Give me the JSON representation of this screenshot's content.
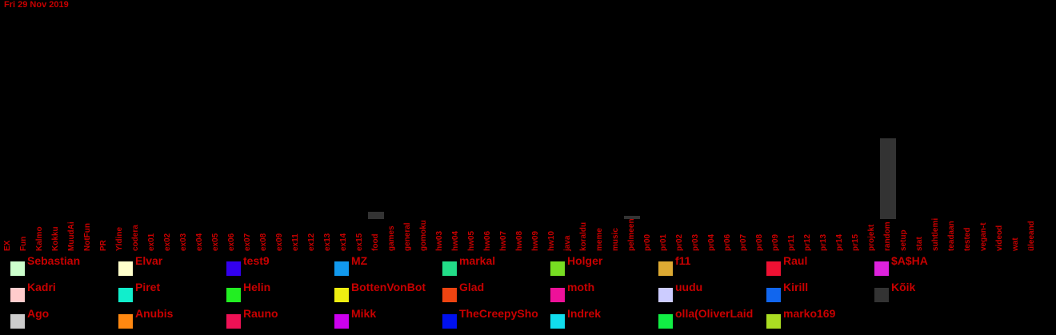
{
  "date": "Fri 29 Nov 2019",
  "chart_data": {
    "type": "bar",
    "categories": [
      "EX",
      "Fun",
      "Kalmo",
      "Kokku",
      "MuudAi",
      "NotFun",
      "PR",
      "Yldine",
      "codera",
      "ex01",
      "ex02",
      "ex03",
      "ex04",
      "ex05",
      "ex06",
      "ex07",
      "ex08",
      "ex09",
      "ex11",
      "ex12",
      "ex13",
      "ex14",
      "ex15",
      "food",
      "games",
      "general",
      "gomoku",
      "hw03",
      "hw04",
      "hw05",
      "hw06",
      "hw07",
      "hw08",
      "hw09",
      "hw10",
      "java",
      "koraldu",
      "meme",
      "music",
      "pelmeen",
      "pr00",
      "pr01",
      "pr02",
      "pr03",
      "pr04",
      "pr06",
      "pr07",
      "pr08",
      "pr09",
      "pr11",
      "pr12",
      "pr13",
      "pr14",
      "pr15",
      "projekt",
      "random",
      "setup",
      "stat",
      "suhtlemi",
      "teadaan",
      "tested",
      "vegan-t",
      "videod",
      "wat",
      "üleeand"
    ],
    "series": [
      {
        "name": "Kõik",
        "color": "#333333",
        "values": [
          0,
          0,
          0,
          0,
          0,
          0,
          0,
          0,
          0,
          0,
          0,
          0,
          0,
          0,
          0,
          0,
          0,
          0,
          0,
          0,
          0,
          0,
          0,
          9,
          0,
          0,
          0,
          0,
          0,
          0,
          0,
          0,
          0,
          0,
          0,
          0,
          0,
          0,
          0,
          4,
          0,
          0,
          0,
          0,
          0,
          0,
          0,
          0,
          0,
          0,
          0,
          0,
          0,
          0,
          0,
          100,
          0,
          0,
          0,
          0,
          0,
          0,
          0,
          0,
          0
        ]
      }
    ],
    "ylim": [
      0,
      100
    ]
  },
  "legend": [
    {
      "name": "Sebastian",
      "color": "#ccffcc"
    },
    {
      "name": "Elvar",
      "color": "#ffffcc"
    },
    {
      "name": "test9",
      "color": "#3300ee"
    },
    {
      "name": "MZ",
      "color": "#1199ee"
    },
    {
      "name": "markal",
      "color": "#22dd88"
    },
    {
      "name": "Holger",
      "color": "#77dd22"
    },
    {
      "name": "f11",
      "color": "#ddaa33"
    },
    {
      "name": "Raul",
      "color": "#ee1133"
    },
    {
      "name": "$A$HA",
      "color": "#dd22dd"
    },
    {
      "name": "Kadri",
      "color": "#ffcccc"
    },
    {
      "name": "Piret",
      "color": "#11eecc"
    },
    {
      "name": "Helin",
      "color": "#22ee22"
    },
    {
      "name": "BottenVonBot",
      "color": "#eeee11"
    },
    {
      "name": "Glad",
      "color": "#ee4411"
    },
    {
      "name": "moth",
      "color": "#ee1199"
    },
    {
      "name": "uudu",
      "color": "#ccccff"
    },
    {
      "name": "Kirill",
      "color": "#1166ee"
    },
    {
      "name": "Kõik",
      "color": "#333333"
    },
    {
      "name": "Ago",
      "color": "#cccccc"
    },
    {
      "name": "Anubis",
      "color": "#ff8811"
    },
    {
      "name": "Rauno",
      "color": "#ee1155"
    },
    {
      "name": "Mikk",
      "color": "#cc00ee"
    },
    {
      "name": "TheCreepySho",
      "color": "#0011ee"
    },
    {
      "name": "Indrek",
      "color": "#11ddee"
    },
    {
      "name": "olla(OliverLaid",
      "color": "#11ee44"
    },
    {
      "name": "marko169",
      "color": "#aadd22"
    }
  ]
}
